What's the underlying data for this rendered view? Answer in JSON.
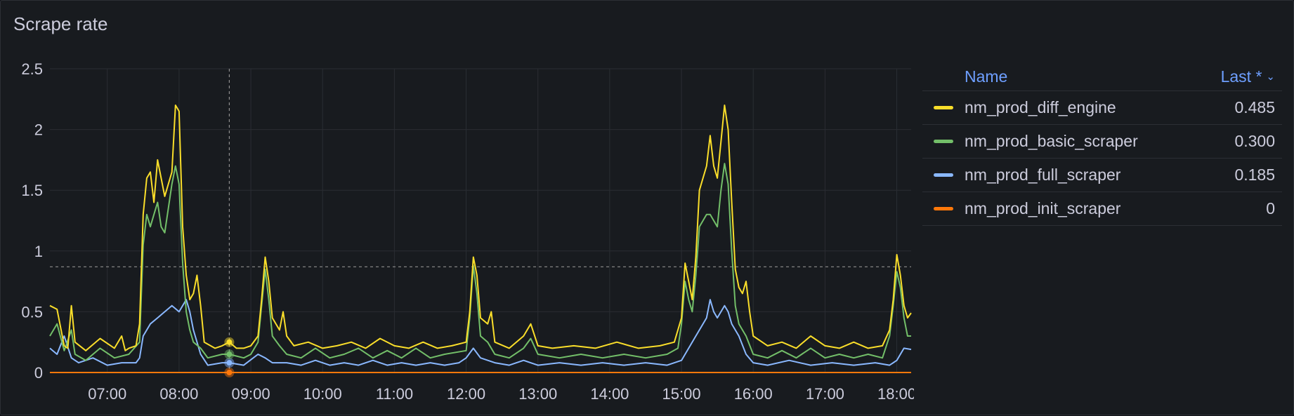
{
  "panel": {
    "title": "Scrape rate"
  },
  "legend": {
    "name_header": "Name",
    "last_header": "Last *",
    "rows": [
      {
        "name": "nm_prod_diff_engine",
        "value": "0.485",
        "color": "#fade2a"
      },
      {
        "name": "nm_prod_basic_scraper",
        "value": "0.300",
        "color": "#73bf69"
      },
      {
        "name": "nm_prod_full_scraper",
        "value": "0.185",
        "color": "#8ab8ff"
      },
      {
        "name": "nm_prod_init_scraper",
        "value": "0",
        "color": "#ff780a"
      }
    ]
  },
  "chart_data": {
    "type": "line",
    "ylim": [
      0,
      2.5
    ],
    "yticks": [
      0,
      0.5,
      1,
      1.5,
      2,
      2.5
    ],
    "ytick_labels": [
      "0",
      "0.5",
      "1",
      "1.5",
      "2",
      "2.5"
    ],
    "xlim": [
      6.2,
      18.2
    ],
    "xticks": [
      7,
      8,
      9,
      10,
      11,
      12,
      13,
      14,
      15,
      16,
      17,
      18
    ],
    "xtick_labels": [
      "07:00",
      "08:00",
      "09:00",
      "10:00",
      "11:00",
      "12:00",
      "13:00",
      "14:00",
      "15:00",
      "16:00",
      "17:00",
      "18:00"
    ],
    "crosshair": {
      "x": 8.7,
      "y": 0.87
    },
    "grid": true,
    "legend_placement": "right",
    "series": [
      {
        "name": "nm_prod_diff_engine",
        "color": "#fade2a",
        "points": [
          [
            6.2,
            0.55
          ],
          [
            6.3,
            0.52
          ],
          [
            6.4,
            0.22
          ],
          [
            6.45,
            0.2
          ],
          [
            6.5,
            0.55
          ],
          [
            6.55,
            0.25
          ],
          [
            6.7,
            0.18
          ],
          [
            6.9,
            0.28
          ],
          [
            7.1,
            0.2
          ],
          [
            7.2,
            0.3
          ],
          [
            7.25,
            0.18
          ],
          [
            7.3,
            0.2
          ],
          [
            7.4,
            0.22
          ],
          [
            7.45,
            0.4
          ],
          [
            7.5,
            1.3
          ],
          [
            7.55,
            1.6
          ],
          [
            7.6,
            1.65
          ],
          [
            7.65,
            1.4
          ],
          [
            7.7,
            1.75
          ],
          [
            7.75,
            1.6
          ],
          [
            7.8,
            1.45
          ],
          [
            7.85,
            1.55
          ],
          [
            7.9,
            1.65
          ],
          [
            7.95,
            2.2
          ],
          [
            8.0,
            2.15
          ],
          [
            8.05,
            1.2
          ],
          [
            8.1,
            0.8
          ],
          [
            8.15,
            0.6
          ],
          [
            8.2,
            0.65
          ],
          [
            8.25,
            0.8
          ],
          [
            8.3,
            0.55
          ],
          [
            8.35,
            0.25
          ],
          [
            8.5,
            0.2
          ],
          [
            8.6,
            0.22
          ],
          [
            8.7,
            0.25
          ],
          [
            8.8,
            0.2
          ],
          [
            8.9,
            0.2
          ],
          [
            9.0,
            0.22
          ],
          [
            9.1,
            0.3
          ],
          [
            9.15,
            0.6
          ],
          [
            9.2,
            0.95
          ],
          [
            9.25,
            0.75
          ],
          [
            9.3,
            0.45
          ],
          [
            9.4,
            0.35
          ],
          [
            9.45,
            0.5
          ],
          [
            9.5,
            0.3
          ],
          [
            9.6,
            0.22
          ],
          [
            9.8,
            0.25
          ],
          [
            10.0,
            0.2
          ],
          [
            10.2,
            0.22
          ],
          [
            10.4,
            0.25
          ],
          [
            10.6,
            0.2
          ],
          [
            10.8,
            0.28
          ],
          [
            11.0,
            0.22
          ],
          [
            11.2,
            0.2
          ],
          [
            11.4,
            0.25
          ],
          [
            11.6,
            0.2
          ],
          [
            11.8,
            0.22
          ],
          [
            12.0,
            0.25
          ],
          [
            12.05,
            0.5
          ],
          [
            12.1,
            0.95
          ],
          [
            12.15,
            0.8
          ],
          [
            12.2,
            0.45
          ],
          [
            12.3,
            0.4
          ],
          [
            12.35,
            0.5
          ],
          [
            12.4,
            0.25
          ],
          [
            12.6,
            0.2
          ],
          [
            12.8,
            0.3
          ],
          [
            12.9,
            0.4
          ],
          [
            13.0,
            0.22
          ],
          [
            13.2,
            0.2
          ],
          [
            13.5,
            0.22
          ],
          [
            13.8,
            0.2
          ],
          [
            14.1,
            0.25
          ],
          [
            14.4,
            0.2
          ],
          [
            14.7,
            0.22
          ],
          [
            14.9,
            0.25
          ],
          [
            15.0,
            0.45
          ],
          [
            15.05,
            0.9
          ],
          [
            15.1,
            0.75
          ],
          [
            15.15,
            0.6
          ],
          [
            15.2,
            0.95
          ],
          [
            15.25,
            1.5
          ],
          [
            15.3,
            1.6
          ],
          [
            15.35,
            1.7
          ],
          [
            15.4,
            1.95
          ],
          [
            15.45,
            1.7
          ],
          [
            15.5,
            1.6
          ],
          [
            15.55,
            1.9
          ],
          [
            15.6,
            2.2
          ],
          [
            15.65,
            2.0
          ],
          [
            15.7,
            1.4
          ],
          [
            15.75,
            0.85
          ],
          [
            15.8,
            0.7
          ],
          [
            15.85,
            0.65
          ],
          [
            15.9,
            0.75
          ],
          [
            15.95,
            0.5
          ],
          [
            16.0,
            0.3
          ],
          [
            16.2,
            0.22
          ],
          [
            16.4,
            0.25
          ],
          [
            16.6,
            0.2
          ],
          [
            16.8,
            0.3
          ],
          [
            17.0,
            0.22
          ],
          [
            17.2,
            0.2
          ],
          [
            17.4,
            0.25
          ],
          [
            17.6,
            0.2
          ],
          [
            17.8,
            0.22
          ],
          [
            17.9,
            0.35
          ],
          [
            17.95,
            0.6
          ],
          [
            18.0,
            0.97
          ],
          [
            18.05,
            0.8
          ],
          [
            18.1,
            0.55
          ],
          [
            18.15,
            0.45
          ],
          [
            18.2,
            0.49
          ]
        ]
      },
      {
        "name": "nm_prod_basic_scraper",
        "color": "#73bf69",
        "points": [
          [
            6.2,
            0.3
          ],
          [
            6.3,
            0.4
          ],
          [
            6.4,
            0.18
          ],
          [
            6.5,
            0.35
          ],
          [
            6.55,
            0.15
          ],
          [
            6.7,
            0.1
          ],
          [
            6.9,
            0.2
          ],
          [
            7.1,
            0.12
          ],
          [
            7.3,
            0.15
          ],
          [
            7.45,
            0.25
          ],
          [
            7.5,
            1.05
          ],
          [
            7.55,
            1.3
          ],
          [
            7.6,
            1.2
          ],
          [
            7.65,
            1.3
          ],
          [
            7.7,
            1.4
          ],
          [
            7.75,
            1.2
          ],
          [
            7.8,
            1.15
          ],
          [
            7.85,
            1.35
          ],
          [
            7.9,
            1.55
          ],
          [
            7.95,
            1.7
          ],
          [
            8.0,
            1.55
          ],
          [
            8.05,
            0.9
          ],
          [
            8.1,
            0.5
          ],
          [
            8.15,
            0.35
          ],
          [
            8.2,
            0.25
          ],
          [
            8.3,
            0.2
          ],
          [
            8.4,
            0.12
          ],
          [
            8.6,
            0.15
          ],
          [
            8.7,
            0.15
          ],
          [
            8.9,
            0.12
          ],
          [
            9.0,
            0.15
          ],
          [
            9.1,
            0.25
          ],
          [
            9.15,
            0.55
          ],
          [
            9.2,
            0.85
          ],
          [
            9.25,
            0.6
          ],
          [
            9.3,
            0.3
          ],
          [
            9.4,
            0.22
          ],
          [
            9.5,
            0.15
          ],
          [
            9.7,
            0.12
          ],
          [
            9.9,
            0.2
          ],
          [
            10.1,
            0.12
          ],
          [
            10.3,
            0.15
          ],
          [
            10.5,
            0.2
          ],
          [
            10.7,
            0.12
          ],
          [
            10.9,
            0.18
          ],
          [
            11.1,
            0.12
          ],
          [
            11.3,
            0.2
          ],
          [
            11.5,
            0.12
          ],
          [
            11.7,
            0.15
          ],
          [
            12.0,
            0.18
          ],
          [
            12.05,
            0.45
          ],
          [
            12.1,
            0.88
          ],
          [
            12.15,
            0.65
          ],
          [
            12.2,
            0.3
          ],
          [
            12.3,
            0.25
          ],
          [
            12.4,
            0.15
          ],
          [
            12.6,
            0.12
          ],
          [
            12.8,
            0.2
          ],
          [
            12.9,
            0.28
          ],
          [
            13.0,
            0.15
          ],
          [
            13.3,
            0.12
          ],
          [
            13.6,
            0.15
          ],
          [
            13.9,
            0.12
          ],
          [
            14.2,
            0.15
          ],
          [
            14.5,
            0.12
          ],
          [
            14.8,
            0.15
          ],
          [
            14.95,
            0.2
          ],
          [
            15.0,
            0.4
          ],
          [
            15.05,
            0.75
          ],
          [
            15.1,
            0.6
          ],
          [
            15.15,
            0.5
          ],
          [
            15.2,
            0.8
          ],
          [
            15.25,
            1.2
          ],
          [
            15.3,
            1.25
          ],
          [
            15.35,
            1.3
          ],
          [
            15.4,
            1.3
          ],
          [
            15.45,
            1.25
          ],
          [
            15.5,
            1.2
          ],
          [
            15.55,
            1.5
          ],
          [
            15.6,
            1.72
          ],
          [
            15.65,
            1.55
          ],
          [
            15.7,
            1.0
          ],
          [
            15.75,
            0.55
          ],
          [
            15.8,
            0.4
          ],
          [
            15.85,
            0.35
          ],
          [
            15.9,
            0.3
          ],
          [
            16.0,
            0.15
          ],
          [
            16.2,
            0.12
          ],
          [
            16.4,
            0.18
          ],
          [
            16.6,
            0.12
          ],
          [
            16.8,
            0.2
          ],
          [
            17.0,
            0.12
          ],
          [
            17.2,
            0.15
          ],
          [
            17.4,
            0.12
          ],
          [
            17.6,
            0.15
          ],
          [
            17.8,
            0.12
          ],
          [
            17.9,
            0.3
          ],
          [
            17.95,
            0.55
          ],
          [
            18.0,
            0.83
          ],
          [
            18.05,
            0.7
          ],
          [
            18.1,
            0.45
          ],
          [
            18.15,
            0.3
          ],
          [
            18.2,
            0.3
          ]
        ]
      },
      {
        "name": "nm_prod_full_scraper",
        "color": "#8ab8ff",
        "points": [
          [
            6.2,
            0.2
          ],
          [
            6.3,
            0.15
          ],
          [
            6.4,
            0.3
          ],
          [
            6.5,
            0.12
          ],
          [
            6.6,
            0.08
          ],
          [
            6.8,
            0.12
          ],
          [
            7.0,
            0.06
          ],
          [
            7.2,
            0.08
          ],
          [
            7.4,
            0.08
          ],
          [
            7.45,
            0.12
          ],
          [
            7.5,
            0.3
          ],
          [
            7.6,
            0.4
          ],
          [
            7.7,
            0.45
          ],
          [
            7.8,
            0.5
          ],
          [
            7.9,
            0.55
          ],
          [
            8.0,
            0.5
          ],
          [
            8.05,
            0.55
          ],
          [
            8.1,
            0.6
          ],
          [
            8.15,
            0.5
          ],
          [
            8.2,
            0.35
          ],
          [
            8.3,
            0.15
          ],
          [
            8.4,
            0.06
          ],
          [
            8.6,
            0.08
          ],
          [
            8.7,
            0.08
          ],
          [
            8.9,
            0.06
          ],
          [
            9.1,
            0.15
          ],
          [
            9.2,
            0.12
          ],
          [
            9.3,
            0.08
          ],
          [
            9.5,
            0.08
          ],
          [
            9.7,
            0.06
          ],
          [
            9.9,
            0.1
          ],
          [
            10.1,
            0.06
          ],
          [
            10.3,
            0.08
          ],
          [
            10.5,
            0.06
          ],
          [
            10.7,
            0.1
          ],
          [
            10.9,
            0.06
          ],
          [
            11.1,
            0.08
          ],
          [
            11.3,
            0.06
          ],
          [
            11.5,
            0.08
          ],
          [
            11.7,
            0.06
          ],
          [
            11.9,
            0.08
          ],
          [
            12.0,
            0.12
          ],
          [
            12.1,
            0.2
          ],
          [
            12.2,
            0.12
          ],
          [
            12.4,
            0.08
          ],
          [
            12.6,
            0.06
          ],
          [
            12.8,
            0.1
          ],
          [
            13.0,
            0.06
          ],
          [
            13.3,
            0.08
          ],
          [
            13.6,
            0.06
          ],
          [
            13.9,
            0.08
          ],
          [
            14.2,
            0.06
          ],
          [
            14.5,
            0.08
          ],
          [
            14.8,
            0.06
          ],
          [
            15.0,
            0.1
          ],
          [
            15.1,
            0.2
          ],
          [
            15.2,
            0.3
          ],
          [
            15.3,
            0.4
          ],
          [
            15.35,
            0.45
          ],
          [
            15.4,
            0.6
          ],
          [
            15.45,
            0.5
          ],
          [
            15.5,
            0.45
          ],
          [
            15.6,
            0.55
          ],
          [
            15.65,
            0.5
          ],
          [
            15.7,
            0.4
          ],
          [
            15.8,
            0.3
          ],
          [
            15.9,
            0.15
          ],
          [
            16.0,
            0.08
          ],
          [
            16.2,
            0.06
          ],
          [
            16.5,
            0.1
          ],
          [
            16.8,
            0.06
          ],
          [
            17.1,
            0.08
          ],
          [
            17.4,
            0.06
          ],
          [
            17.7,
            0.08
          ],
          [
            17.9,
            0.06
          ],
          [
            18.0,
            0.1
          ],
          [
            18.1,
            0.2
          ],
          [
            18.2,
            0.19
          ]
        ]
      },
      {
        "name": "nm_prod_init_scraper",
        "color": "#ff780a",
        "points": [
          [
            6.2,
            0
          ],
          [
            18.2,
            0
          ]
        ]
      }
    ]
  }
}
